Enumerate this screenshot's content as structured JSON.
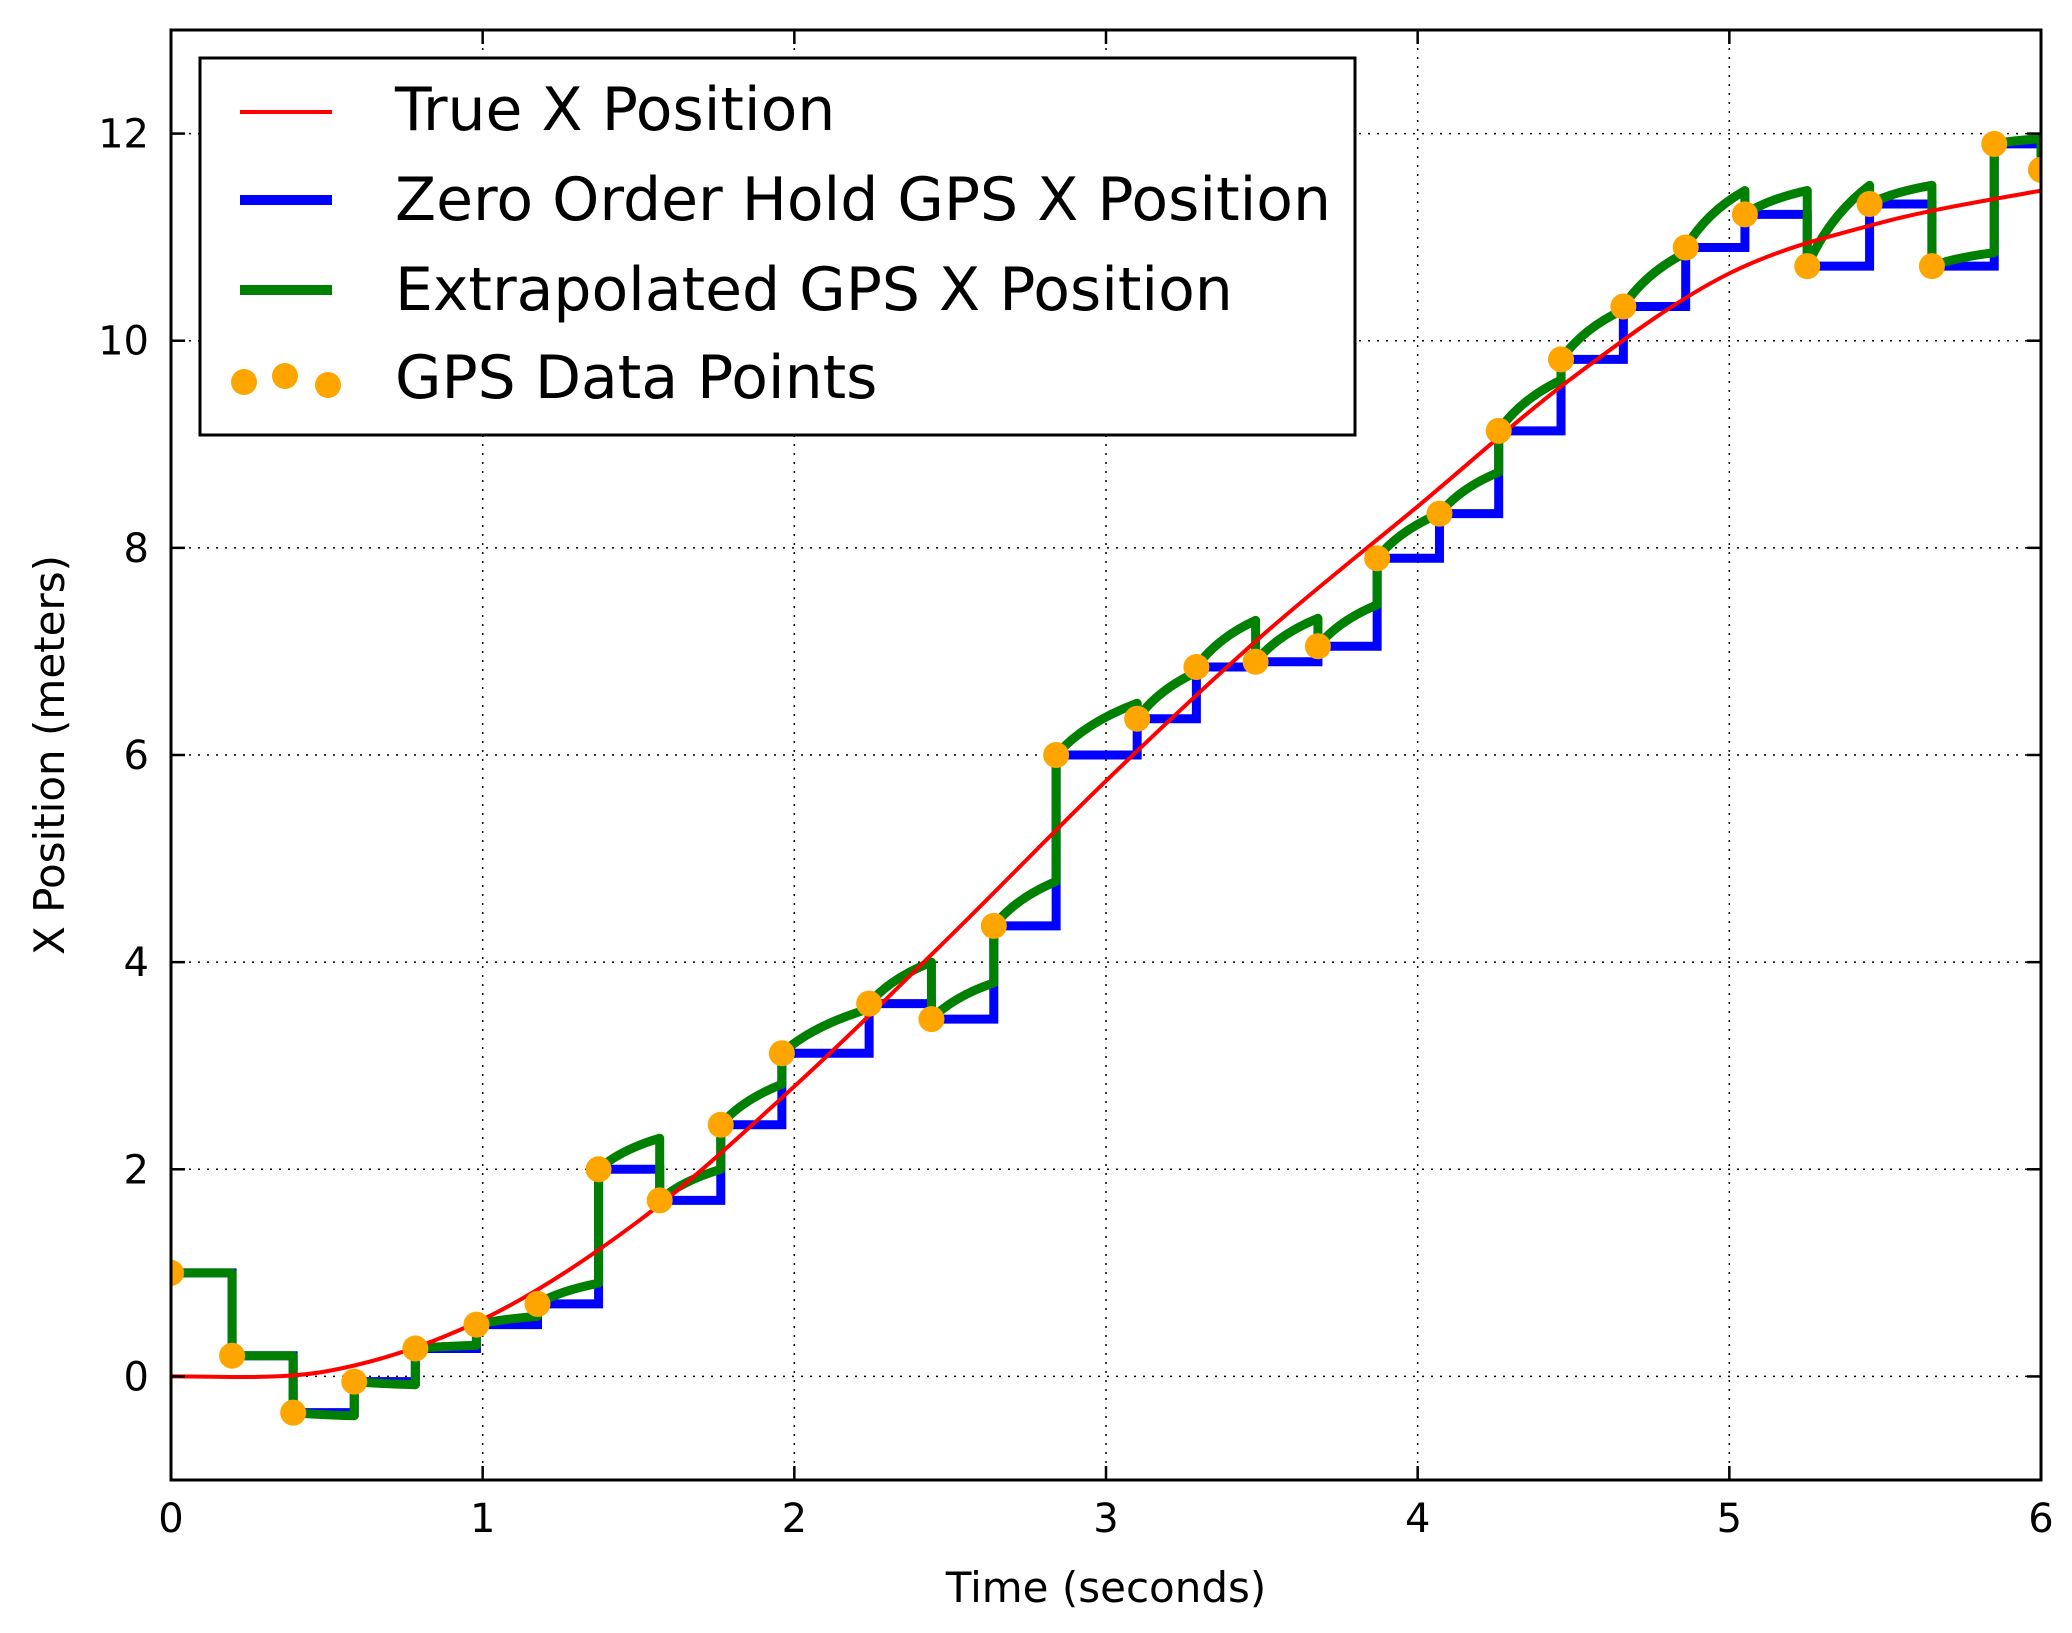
{
  "chart_data": {
    "type": "line",
    "title": "",
    "xlabel": "Time (seconds)",
    "ylabel": "X Position (meters)",
    "xlim": [
      0,
      6
    ],
    "ylim": [
      -1,
      13
    ],
    "xticks": [
      0,
      1,
      2,
      3,
      4,
      5,
      6
    ],
    "yticks": [
      0,
      2,
      4,
      6,
      8,
      10,
      12
    ],
    "grid": true,
    "legend_position": "top-left",
    "colors": {
      "true": "#ff0000",
      "zoh": "#0000ff",
      "extrap": "#008000",
      "points": "#ffa500"
    },
    "series": [
      {
        "name": "True X Position",
        "kind": "line",
        "color": "#ff0000"
      },
      {
        "name": "Zero Order Hold GPS X Position",
        "kind": "step",
        "color": "#0000ff"
      },
      {
        "name": "Extrapolated GPS X Position",
        "kind": "extrapolated",
        "color": "#008000"
      },
      {
        "name": "GPS Data Points",
        "kind": "scatter",
        "color": "#ffa500"
      }
    ],
    "true_x": [
      0,
      0.5,
      1,
      1.5,
      2,
      2.5,
      3,
      3.5,
      4,
      4.5,
      5,
      5.5,
      6
    ],
    "true_y": [
      0,
      0.05,
      0.55,
      1.5,
      2.8,
      4.25,
      5.75,
      7.15,
      8.4,
      9.65,
      10.65,
      11.15,
      11.45
    ],
    "gps_t": [
      0,
      0.196,
      0.392,
      0.588,
      0.784,
      0.98,
      1.176,
      1.372,
      1.568,
      1.764,
      1.96,
      2.24,
      2.44,
      2.64,
      2.84,
      3.1,
      3.29,
      3.48,
      3.68,
      3.87,
      4.07,
      4.26,
      4.46,
      4.66,
      4.86,
      5.05,
      5.25,
      5.45,
      5.65,
      5.85,
      6.0
    ],
    "gps_x": [
      1.0,
      0.2,
      -0.35,
      -0.05,
      0.27,
      0.5,
      0.7,
      2.0,
      1.7,
      2.43,
      3.12,
      3.6,
      3.45,
      4.35,
      6.0,
      6.35,
      6.85,
      6.9,
      7.05,
      7.9,
      8.33,
      9.13,
      9.82,
      10.33,
      10.9,
      11.22,
      10.72,
      11.32,
      10.72,
      11.9,
      11.65
    ],
    "extrap_end": [
      1.0,
      0.2,
      -0.38,
      -0.08,
      0.3,
      0.58,
      0.9,
      2.3,
      2.0,
      2.82,
      3.55,
      4.0,
      3.8,
      4.78,
      6.5,
      6.8,
      7.3,
      7.32,
      7.45,
      8.33,
      8.73,
      9.62,
      10.3,
      10.85,
      11.45,
      11.45,
      11.5,
      11.5,
      10.85,
      11.95,
      11.95
    ]
  }
}
